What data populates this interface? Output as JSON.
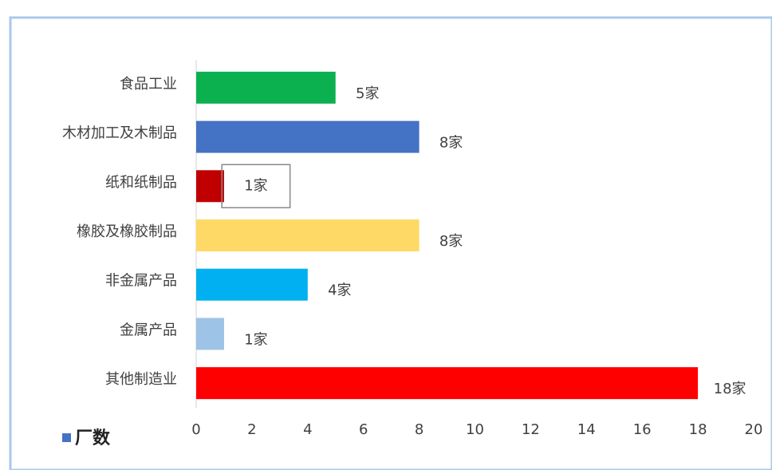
{
  "chart_data": {
    "type": "hbar",
    "categories": [
      "食品工业",
      "木材加工及木制品",
      "纸和纸制品",
      "橡胶及橡胶制品",
      "非金属产品",
      "金属产品",
      "其他制造业"
    ],
    "series": [
      {
        "name": "厂数",
        "color": "#4472c4",
        "values": [
          5,
          8,
          1,
          8,
          4,
          1,
          18
        ],
        "value_labels": [
          "5家",
          "8家",
          "1家",
          "8家",
          "4家",
          "1家",
          "18家"
        ],
        "colors": [
          "#0bb04f",
          "#4472c4",
          "#c00000",
          "#ffd966",
          "#00b0f0",
          "#9dc3e6",
          "#ff0000"
        ]
      }
    ],
    "xlim": [
      0,
      20
    ],
    "xticks": [
      0,
      2,
      4,
      6,
      8,
      10,
      12,
      14,
      16,
      18,
      20
    ],
    "grid": false,
    "legend": "bottom-left"
  }
}
